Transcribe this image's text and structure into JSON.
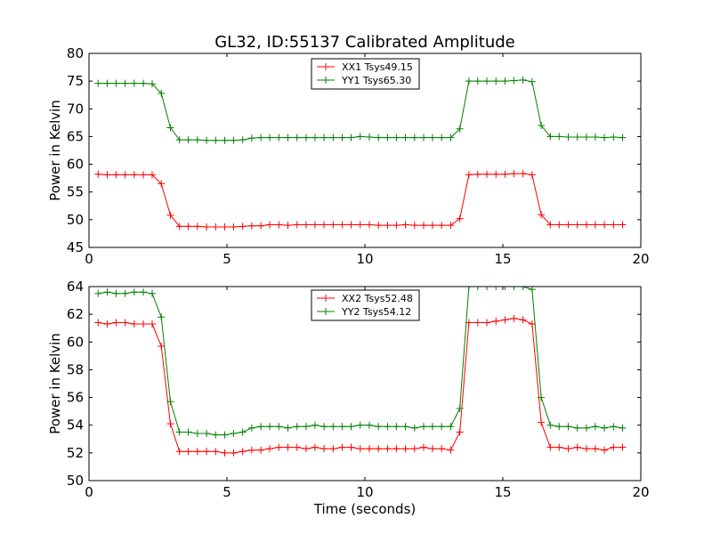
{
  "title": "GL32, ID:55137 Calibrated Amplitude",
  "chart_data": [
    {
      "type": "line",
      "xlabel": "",
      "ylabel": "Power in Kelvin",
      "xlim": [
        0,
        20
      ],
      "ylim": [
        45,
        80
      ],
      "xticks": [
        0,
        5,
        10,
        15,
        20
      ],
      "yticks": [
        45,
        50,
        55,
        60,
        65,
        70,
        75,
        80
      ],
      "legend_position": "top-center",
      "x": [
        0.33,
        0.66,
        0.98,
        1.31,
        1.64,
        1.97,
        2.29,
        2.62,
        2.95,
        3.28,
        3.6,
        3.93,
        4.26,
        4.59,
        4.92,
        5.24,
        5.57,
        5.9,
        6.23,
        6.55,
        6.88,
        7.21,
        7.54,
        7.87,
        8.19,
        8.52,
        8.85,
        9.18,
        9.5,
        9.83,
        10.16,
        10.49,
        10.82,
        11.14,
        11.47,
        11.8,
        12.13,
        12.45,
        12.78,
        13.11,
        13.44,
        13.77,
        14.09,
        14.42,
        14.75,
        15.08,
        15.4,
        15.73,
        16.06,
        16.39,
        16.72,
        17.04,
        17.37,
        17.7,
        18.03,
        18.35,
        18.68,
        19.01,
        19.34
      ],
      "series": [
        {
          "name": "XX1 Tsys49.15",
          "color": "#ff0000",
          "values": [
            58.2,
            58.1,
            58.1,
            58.1,
            58.1,
            58.1,
            58.1,
            56.5,
            50.8,
            48.8,
            48.8,
            48.8,
            48.7,
            48.7,
            48.7,
            48.7,
            48.8,
            48.9,
            48.9,
            49.1,
            49.1,
            49.0,
            49.1,
            49.1,
            49.1,
            49.1,
            49.1,
            49.1,
            49.1,
            49.1,
            49.1,
            49.0,
            49.0,
            49.0,
            49.1,
            49.0,
            49.0,
            49.0,
            49.0,
            49.0,
            50.2,
            58.1,
            58.2,
            58.2,
            58.2,
            58.2,
            58.3,
            58.3,
            58.1,
            50.9,
            49.1,
            49.1,
            49.1,
            49.1,
            49.1,
            49.1,
            49.1,
            49.1,
            49.1
          ]
        },
        {
          "name": "YY1 Tsys65.30",
          "color": "#008000",
          "values": [
            74.6,
            74.6,
            74.6,
            74.6,
            74.6,
            74.6,
            74.5,
            72.8,
            66.6,
            64.4,
            64.4,
            64.4,
            64.3,
            64.3,
            64.3,
            64.3,
            64.4,
            64.7,
            64.8,
            64.8,
            64.8,
            64.8,
            64.8,
            64.8,
            64.8,
            64.8,
            64.8,
            64.8,
            64.8,
            65.0,
            64.9,
            64.8,
            64.8,
            64.8,
            64.8,
            64.8,
            64.8,
            64.8,
            64.8,
            64.8,
            66.4,
            75.0,
            75.0,
            75.0,
            75.0,
            75.0,
            75.1,
            75.2,
            74.9,
            67.0,
            65.0,
            65.0,
            64.9,
            64.9,
            64.9,
            64.9,
            64.8,
            64.9,
            64.8
          ]
        }
      ]
    },
    {
      "type": "line",
      "xlabel": "Time (seconds)",
      "ylabel": "Power in Kelvin",
      "xlim": [
        0,
        20
      ],
      "ylim": [
        50,
        64
      ],
      "xticks": [
        0,
        5,
        10,
        15,
        20
      ],
      "yticks": [
        50,
        52,
        54,
        56,
        58,
        60,
        62,
        64
      ],
      "legend_position": "top-center",
      "x": [
        0.33,
        0.66,
        0.98,
        1.31,
        1.64,
        1.97,
        2.29,
        2.62,
        2.95,
        3.28,
        3.6,
        3.93,
        4.26,
        4.59,
        4.92,
        5.24,
        5.57,
        5.9,
        6.23,
        6.55,
        6.88,
        7.21,
        7.54,
        7.87,
        8.19,
        8.52,
        8.85,
        9.18,
        9.5,
        9.83,
        10.16,
        10.49,
        10.82,
        11.14,
        11.47,
        11.8,
        12.13,
        12.45,
        12.78,
        13.11,
        13.44,
        13.77,
        14.09,
        14.42,
        14.75,
        15.08,
        15.4,
        15.73,
        16.06,
        16.39,
        16.72,
        17.04,
        17.37,
        17.7,
        18.03,
        18.35,
        18.68,
        19.01,
        19.34
      ],
      "series": [
        {
          "name": "XX2 Tsys52.48",
          "color": "#ff0000",
          "values": [
            61.4,
            61.3,
            61.4,
            61.4,
            61.3,
            61.3,
            61.3,
            59.7,
            54.1,
            52.1,
            52.1,
            52.1,
            52.1,
            52.1,
            52.0,
            52.0,
            52.1,
            52.2,
            52.2,
            52.3,
            52.4,
            52.4,
            52.4,
            52.3,
            52.4,
            52.3,
            52.3,
            52.4,
            52.4,
            52.3,
            52.3,
            52.3,
            52.3,
            52.3,
            52.3,
            52.3,
            52.4,
            52.3,
            52.3,
            52.2,
            53.5,
            61.4,
            61.4,
            61.4,
            61.5,
            61.6,
            61.7,
            61.6,
            61.3,
            54.2,
            52.4,
            52.4,
            52.3,
            52.4,
            52.3,
            52.3,
            52.2,
            52.4,
            52.4
          ]
        },
        {
          "name": "YY2 Tsys54.12",
          "color": "#008000",
          "values": [
            63.5,
            63.6,
            63.5,
            63.5,
            63.6,
            63.6,
            63.5,
            61.8,
            55.7,
            53.5,
            53.5,
            53.4,
            53.4,
            53.3,
            53.3,
            53.4,
            53.5,
            53.8,
            53.9,
            53.9,
            53.9,
            53.8,
            53.9,
            53.9,
            54.0,
            53.9,
            53.9,
            53.9,
            53.9,
            54.0,
            54.0,
            53.9,
            53.9,
            53.9,
            53.9,
            53.8,
            53.9,
            53.9,
            53.9,
            53.9,
            55.2,
            64.0,
            64.0,
            64.0,
            64.0,
            64.0,
            64.0,
            64.0,
            63.8,
            56.0,
            54.0,
            53.9,
            53.9,
            53.8,
            53.8,
            53.9,
            53.8,
            53.9,
            53.8
          ]
        }
      ]
    }
  ]
}
